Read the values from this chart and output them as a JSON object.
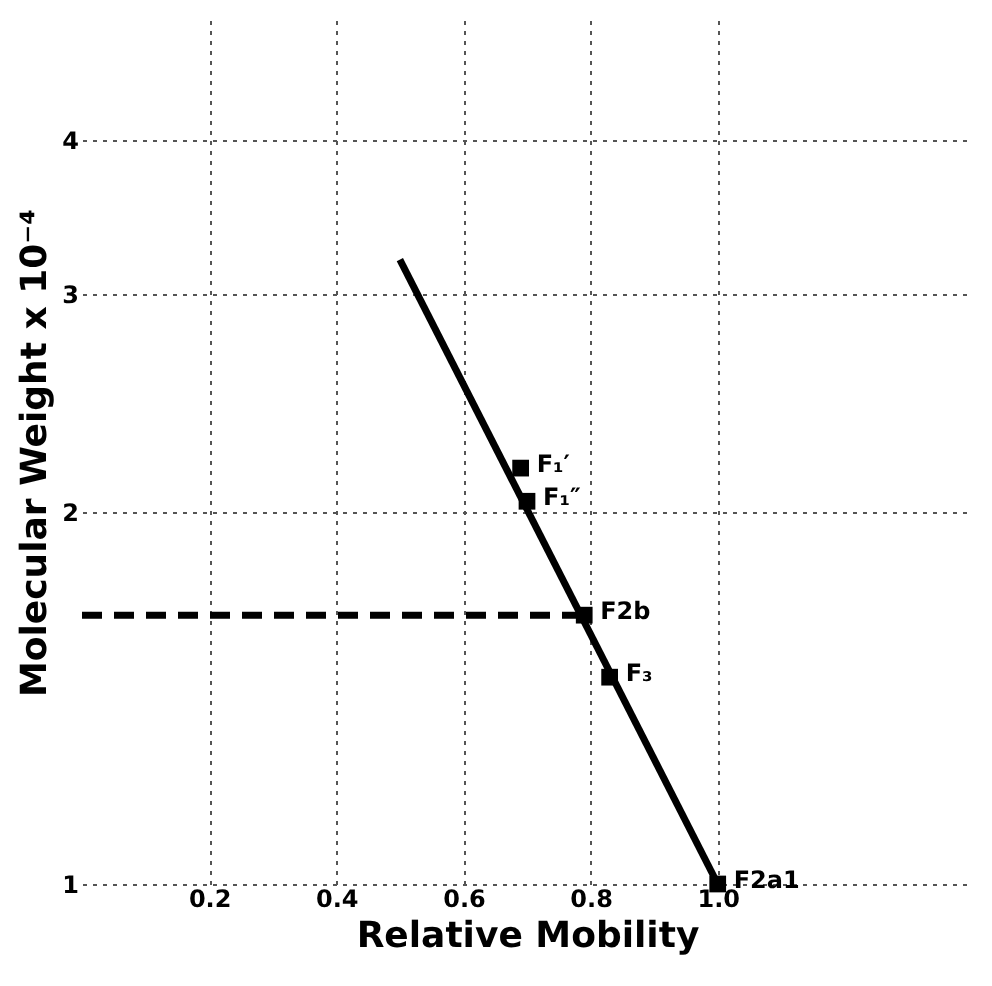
{
  "chart_data": {
    "type": "line",
    "xlabel": "Relative Mobility",
    "ylabel": "Molecular Weight x 10⁻⁴",
    "xlim": [
      0,
      1.4
    ],
    "xticks": [
      0.2,
      0.4,
      0.6,
      0.8,
      {
        "value": 1,
        "label": "1.0"
      }
    ],
    "ylim": [
      1,
      5
    ],
    "yticks": [
      1,
      2,
      3,
      4
    ],
    "log": "y",
    "grid": true,
    "series": [
      {
        "color": "#000000",
        "x": [
          0.5,
          1.0
        ],
        "values": [
          3.2,
          1.0
        ],
        "line_style": "solid"
      },
      {
        "type": "line",
        "color": "#000000",
        "x": [
          0,
          0.79
        ],
        "values": [
          1.65,
          1.65
        ],
        "line_style": "dashed"
      },
      {
        "type": "scatter",
        "color": "#000000",
        "marker": "square",
        "x": [
          0.69,
          0.7,
          0.79,
          0.83,
          1.0
        ],
        "values": [
          2.17,
          2.04,
          1.65,
          1.47,
          1.0
        ]
      }
    ],
    "annotations": [
      {
        "text": "F₁′",
        "x": 0.69,
        "y": 2.17
      },
      {
        "text": "F₁″",
        "x": 0.7,
        "y": 2.04
      },
      {
        "text": "F2b",
        "x": 0.79,
        "y": 1.65
      },
      {
        "text": "F₃",
        "x": 0.83,
        "y": 1.47
      },
      {
        "text": "F2a1",
        "x": 1.0,
        "y": 1.0
      }
    ]
  }
}
